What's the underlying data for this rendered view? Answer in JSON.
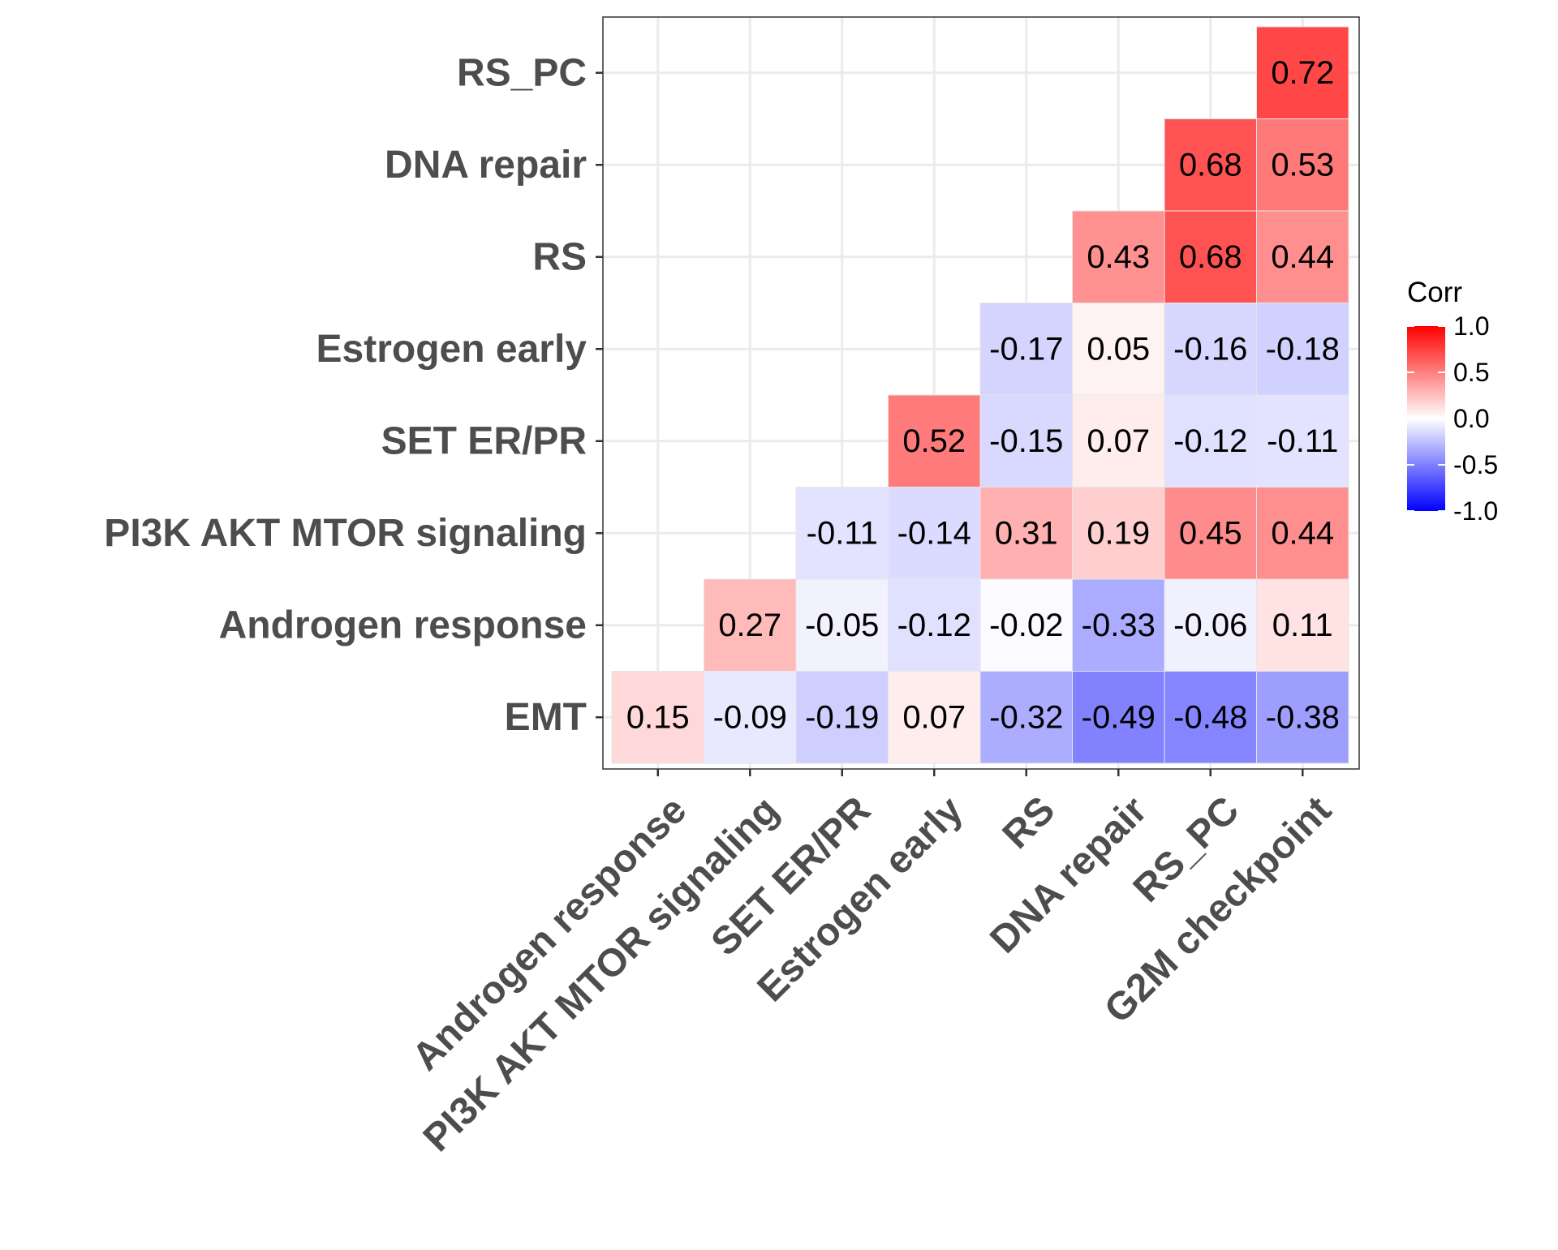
{
  "chart_data": {
    "type": "heatmap",
    "title": "",
    "xlabel": "",
    "ylabel": "",
    "x_categories": [
      "Androgen response",
      "PI3K AKT MTOR signaling",
      "SET ER/PR",
      "Estrogen early",
      "RS",
      "DNA repair",
      "RS_PC",
      "G2M checkpoint"
    ],
    "y_categories": [
      "EMT",
      "Androgen response",
      "PI3K AKT MTOR signaling",
      "SET ER/PR",
      "Estrogen early",
      "RS",
      "DNA repair",
      "RS_PC"
    ],
    "cells": [
      {
        "x": "Androgen response",
        "y": "EMT",
        "value": 0.15
      },
      {
        "x": "PI3K AKT MTOR signaling",
        "y": "EMT",
        "value": -0.09
      },
      {
        "x": "SET ER/PR",
        "y": "EMT",
        "value": -0.19
      },
      {
        "x": "Estrogen early",
        "y": "EMT",
        "value": 0.07
      },
      {
        "x": "RS",
        "y": "EMT",
        "value": -0.32
      },
      {
        "x": "DNA repair",
        "y": "EMT",
        "value": -0.49
      },
      {
        "x": "RS_PC",
        "y": "EMT",
        "value": -0.48
      },
      {
        "x": "G2M checkpoint",
        "y": "EMT",
        "value": -0.38
      },
      {
        "x": "PI3K AKT MTOR signaling",
        "y": "Androgen response",
        "value": 0.27
      },
      {
        "x": "SET ER/PR",
        "y": "Androgen response",
        "value": -0.05
      },
      {
        "x": "Estrogen early",
        "y": "Androgen response",
        "value": -0.12
      },
      {
        "x": "RS",
        "y": "Androgen response",
        "value": -0.02
      },
      {
        "x": "DNA repair",
        "y": "Androgen response",
        "value": -0.33
      },
      {
        "x": "RS_PC",
        "y": "Androgen response",
        "value": -0.06
      },
      {
        "x": "G2M checkpoint",
        "y": "Androgen response",
        "value": 0.11
      },
      {
        "x": "SET ER/PR",
        "y": "PI3K AKT MTOR signaling",
        "value": -0.11
      },
      {
        "x": "Estrogen early",
        "y": "PI3K AKT MTOR signaling",
        "value": -0.14
      },
      {
        "x": "RS",
        "y": "PI3K AKT MTOR signaling",
        "value": 0.31
      },
      {
        "x": "DNA repair",
        "y": "PI3K AKT MTOR signaling",
        "value": 0.19
      },
      {
        "x": "RS_PC",
        "y": "PI3K AKT MTOR signaling",
        "value": 0.45
      },
      {
        "x": "G2M checkpoint",
        "y": "PI3K AKT MTOR signaling",
        "value": 0.44
      },
      {
        "x": "Estrogen early",
        "y": "SET ER/PR",
        "value": 0.52
      },
      {
        "x": "RS",
        "y": "SET ER/PR",
        "value": -0.15
      },
      {
        "x": "DNA repair",
        "y": "SET ER/PR",
        "value": 0.07
      },
      {
        "x": "RS_PC",
        "y": "SET ER/PR",
        "value": -0.12
      },
      {
        "x": "G2M checkpoint",
        "y": "SET ER/PR",
        "value": -0.11
      },
      {
        "x": "RS",
        "y": "Estrogen early",
        "value": -0.17
      },
      {
        "x": "DNA repair",
        "y": "Estrogen early",
        "value": 0.05
      },
      {
        "x": "RS_PC",
        "y": "Estrogen early",
        "value": -0.16
      },
      {
        "x": "G2M checkpoint",
        "y": "Estrogen early",
        "value": -0.18
      },
      {
        "x": "DNA repair",
        "y": "RS",
        "value": 0.43
      },
      {
        "x": "RS_PC",
        "y": "RS",
        "value": 0.68
      },
      {
        "x": "G2M checkpoint",
        "y": "RS",
        "value": 0.44
      },
      {
        "x": "RS_PC",
        "y": "DNA repair",
        "value": 0.68
      },
      {
        "x": "G2M checkpoint",
        "y": "DNA repair",
        "value": 0.53
      },
      {
        "x": "G2M checkpoint",
        "y": "RS_PC",
        "value": 0.72
      }
    ],
    "cell_labels": [
      "0.15",
      "-0.09",
      "-0.19",
      "0.07",
      "-0.32",
      "-0.49",
      "-0.48",
      "-0.38",
      "0.27",
      "-0.05",
      "-0.12",
      "-0.02",
      "-0.33",
      "-0.06",
      "0.11",
      "-0.11",
      "-0.14",
      "0.31",
      "0.19",
      "0.45",
      "0.44",
      "0.52",
      "-0.15",
      "0.07",
      "-0.12",
      "-0.11",
      "-0.17",
      "0.05",
      "-0.16",
      "-0.18",
      "0.43",
      "0.68",
      "0.44",
      "0.68",
      "0.53",
      "0.72"
    ],
    "color_scale": {
      "min": -1.0,
      "max": 1.0,
      "low": "#0000ff",
      "mid": "#ffffff",
      "high": "#ff0000"
    },
    "legend": {
      "title": "Corr",
      "position": "right",
      "breaks": [
        1.0,
        0.5,
        0.0,
        -0.5,
        -1.0
      ],
      "break_labels": [
        "1.0",
        "0.5",
        "0.0",
        "-0.5",
        "-1.0"
      ]
    },
    "grid": true,
    "axis_label_color": "#4d4d4d",
    "panel_border_color": "#333333",
    "grid_color": "#ebebeb"
  }
}
